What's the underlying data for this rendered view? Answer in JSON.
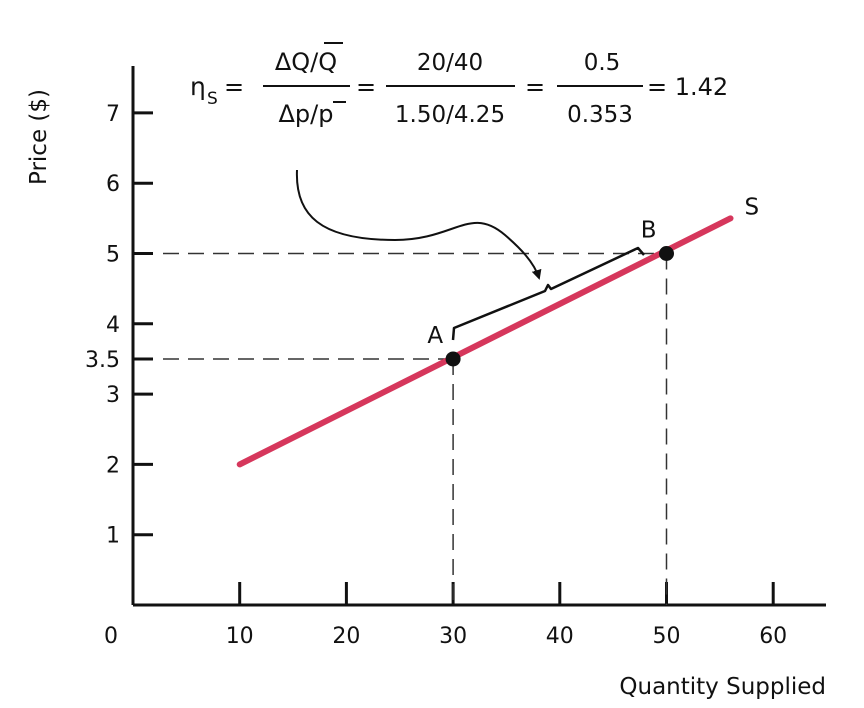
{
  "chart_data": {
    "type": "line",
    "title": "",
    "xlabel": "Quantity Supplied",
    "ylabel": "Price ($)",
    "origin_label": "0",
    "xlim": [
      0,
      64
    ],
    "ylim": [
      0,
      7.7
    ],
    "x_ticks": [
      10,
      20,
      30,
      40,
      50,
      60
    ],
    "y_ticks": [
      1,
      2,
      3,
      3.5,
      4,
      5,
      6,
      7
    ],
    "y_tick_labels": [
      "1",
      "2",
      "3",
      "3.5",
      "4",
      "5",
      "6",
      "7"
    ],
    "x_tick_labels": [
      "10",
      "20",
      "30",
      "40",
      "50",
      "60"
    ],
    "grid": false,
    "series": [
      {
        "name": "S",
        "x": [
          10,
          56
        ],
        "y": [
          2,
          5.5
        ],
        "color": "#d6375c"
      }
    ],
    "points": [
      {
        "label": "A",
        "x": 30,
        "y": 3.5
      },
      {
        "label": "B",
        "x": 50,
        "y": 5
      }
    ],
    "formula": {
      "symbol": "η",
      "subscript": "S",
      "eq1": "=",
      "frac1_num": "ΔQ/Q",
      "frac1_den": "Δp/p",
      "eq2": "=",
      "frac2_num": "20/40",
      "frac2_den": "1.50/4.25",
      "eq3": "=",
      "frac3_num": "0.5",
      "frac3_den": "0.353",
      "result": "= 1.42"
    }
  }
}
